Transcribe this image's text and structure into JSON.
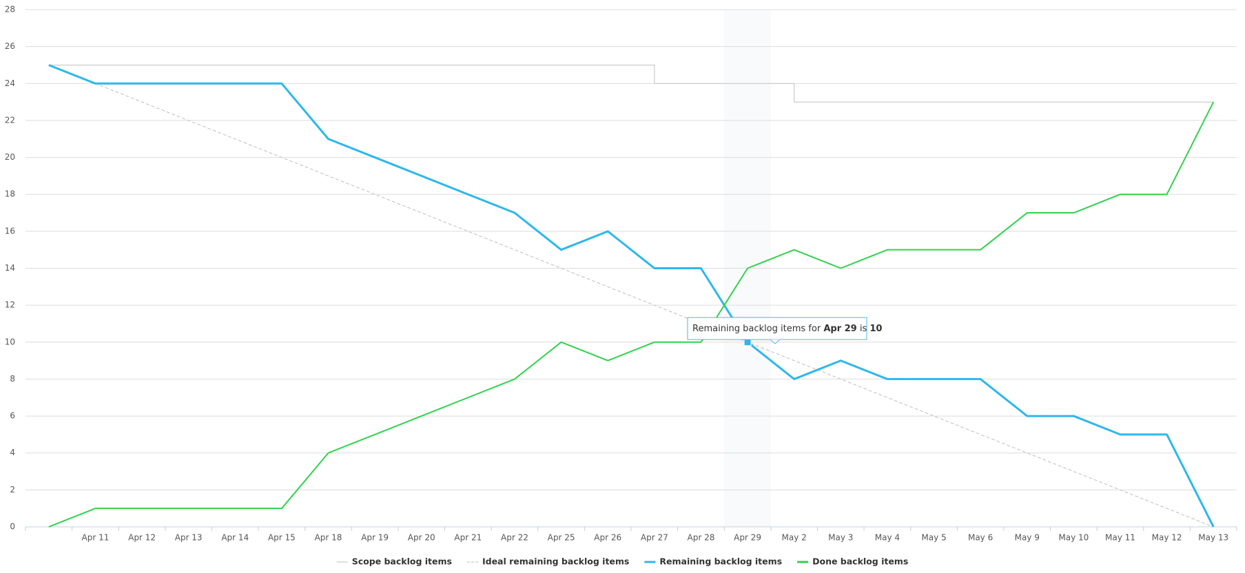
{
  "chart_data": {
    "type": "line",
    "categories": [
      null,
      "Apr 11",
      "Apr 12",
      "Apr 13",
      "Apr 14",
      "Apr 15",
      "Apr 18",
      "Apr 19",
      "Apr 20",
      "Apr 21",
      "Apr 22",
      "Apr 25",
      "Apr 26",
      "Apr 27",
      "Apr 28",
      "Apr 29",
      "May 2",
      "May 3",
      "May 4",
      "May 5",
      "May 6",
      "May 9",
      "May 10",
      "May 11",
      "May 12",
      "May 13"
    ],
    "series": [
      {
        "name": "Scope backlog items",
        "color": "#cccccc",
        "step": true,
        "values": [
          25,
          25,
          25,
          25,
          25,
          25,
          25,
          25,
          25,
          25,
          25,
          25,
          25,
          24,
          24,
          24,
          23,
          23,
          23,
          23,
          23,
          23,
          23,
          23,
          23,
          23
        ]
      },
      {
        "name": "Ideal remaining backlog items",
        "color": "#c8c8c8",
        "dashed": true,
        "values": [
          25,
          24,
          23,
          22,
          21,
          20,
          19,
          18,
          17,
          16,
          15,
          14,
          13,
          12,
          11,
          10,
          9,
          8,
          7,
          6,
          5,
          4,
          3,
          2,
          1,
          0
        ]
      },
      {
        "name": "Remaining backlog items",
        "color": "#2db7ec",
        "values": [
          25,
          24,
          24,
          24,
          24,
          24,
          21,
          20,
          19,
          18,
          17,
          15,
          16,
          14,
          14,
          10,
          8,
          9,
          8,
          8,
          8,
          6,
          6,
          5,
          5,
          0
        ]
      },
      {
        "name": "Done backlog items",
        "color": "#2fd24c",
        "values": [
          0,
          1,
          1,
          1,
          1,
          1,
          4,
          5,
          6,
          7,
          8,
          10,
          9,
          10,
          10,
          14,
          15,
          14,
          15,
          15,
          15,
          17,
          17,
          18,
          18,
          23
        ]
      }
    ],
    "ylim": [
      0,
      28
    ],
    "yticks": [
      0,
      2,
      4,
      6,
      8,
      10,
      12,
      14,
      16,
      18,
      20,
      22,
      24,
      26,
      28
    ],
    "grid": true,
    "tooltip": {
      "before": "Remaining backlog items for",
      "middle": "is"
    }
  }
}
